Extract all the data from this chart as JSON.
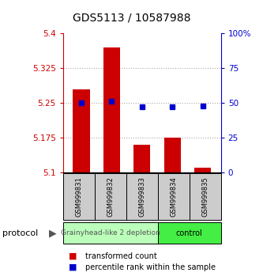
{
  "title": "GDS5113 / 10587988",
  "samples": [
    "GSM999831",
    "GSM999832",
    "GSM999833",
    "GSM999834",
    "GSM999835"
  ],
  "bar_values": [
    5.28,
    5.37,
    5.16,
    5.175,
    5.11
  ],
  "percentile_values": [
    50,
    51,
    47,
    47,
    48
  ],
  "ylim_left": [
    5.1,
    5.4
  ],
  "ylim_right": [
    0,
    100
  ],
  "yticks_left": [
    5.1,
    5.175,
    5.25,
    5.325,
    5.4
  ],
  "ytick_labels_left": [
    "5.1",
    "5.175",
    "5.25",
    "5.325",
    "5.4"
  ],
  "yticks_right": [
    0,
    25,
    50,
    75,
    100
  ],
  "ytick_labels_right": [
    "0",
    "25",
    "50",
    "75",
    "100%"
  ],
  "bar_color": "#cc0000",
  "marker_color": "#0000cc",
  "groups": [
    {
      "label": "Grainyhead-like 2 depletion",
      "n": 3,
      "color": "#bbffbb"
    },
    {
      "label": "control",
      "n": 2,
      "color": "#44ee44"
    }
  ],
  "protocol_label": "protocol",
  "legend_bar_label": "transformed count",
  "legend_marker_label": "percentile rank within the sample",
  "dotted_line_color": "#aaaaaa",
  "background_color": "#ffffff"
}
